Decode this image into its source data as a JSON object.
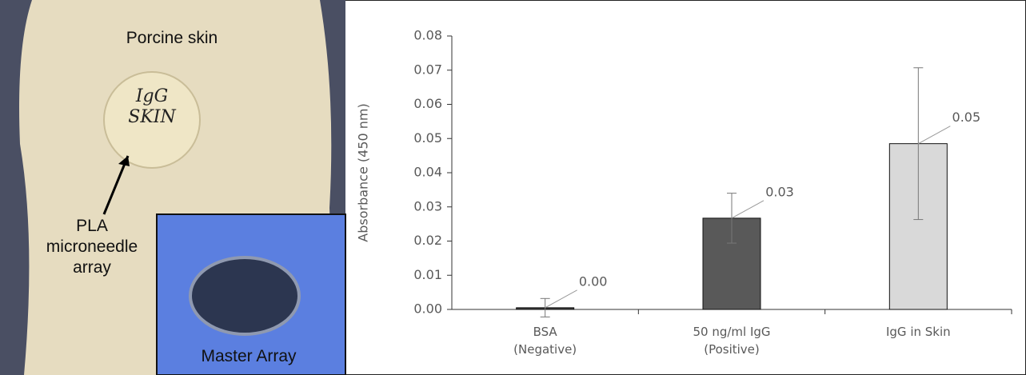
{
  "photo_labels": {
    "skin": "Porcine skin",
    "handwriting": "IgG\nSKIN",
    "pointer": "PLA\nmicroneedle\narray",
    "inset": "Master Array"
  },
  "chart_data": {
    "type": "bar",
    "ylabel": "Absorbance (450 nm)",
    "categories": [
      "BSA\n(Negative)",
      "50 ng/ml IgG\n(Positive)",
      "IgG in Skin"
    ],
    "values": [
      0.0005,
      0.0267,
      0.0485
    ],
    "value_labels": [
      "0.00",
      "0.03",
      "0.05"
    ],
    "errors": [
      0.0027,
      0.0073,
      0.0222
    ],
    "colors": [
      "#3a3a3a",
      "#595959",
      "#d9d9d9"
    ],
    "ylim": [
      0,
      0.08
    ],
    "yticks": [
      {
        "value": 0,
        "label": "0.00"
      },
      {
        "value": 0.01,
        "label": "0.01"
      },
      {
        "value": 0.02,
        "label": "0.02"
      },
      {
        "value": 0.03,
        "label": "0.03"
      },
      {
        "value": 0.04,
        "label": "0.04"
      },
      {
        "value": 0.05,
        "label": "0.05"
      },
      {
        "value": 0.06,
        "label": "0.06"
      },
      {
        "value": 0.07,
        "label": "0.07"
      },
      {
        "value": 0.08,
        "label": "0.08"
      }
    ]
  }
}
